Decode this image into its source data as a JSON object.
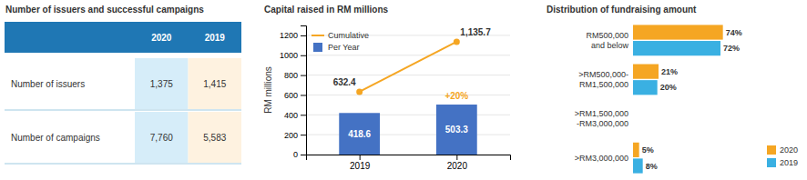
{
  "chart_data": [
    {
      "type": "table",
      "title": "Number of issuers and successful campaigns",
      "categories": [
        "Number of issuers",
        "Number of campaigns"
      ],
      "series": [
        {
          "name": "2020",
          "color": "#d6edf9",
          "values": [
            1375,
            7760
          ],
          "value_labels": [
            "1,375",
            "7,760"
          ]
        },
        {
          "name": "2019",
          "color": "#fef2e0",
          "values": [
            1415,
            5583
          ],
          "value_labels": [
            "1,415",
            "5,583"
          ]
        }
      ],
      "data_labels": true
    },
    {
      "type": "bar",
      "title": "Capital raised in RM millions",
      "categories": [
        "2019",
        "2020"
      ],
      "series": [
        {
          "name": "Cumulative",
          "type": "line",
          "color": "#f5a623",
          "marker": "circle",
          "values": [
            632.4,
            1135.7
          ],
          "value_labels": [
            "632.4",
            "1,135.7"
          ]
        },
        {
          "name": "Per Year",
          "type": "bar",
          "color": "#4472c4",
          "values": [
            418.6,
            503.3
          ]
        }
      ],
      "ylabel": "RM millions",
      "ylim": [
        0,
        1300
      ],
      "yticks": [
        0,
        200,
        400,
        600,
        800,
        1000,
        1200
      ],
      "grid": true,
      "legend": "upper left",
      "data_labels": true,
      "annotations": [
        {
          "text": "+20%",
          "x": "2020",
          "color": "#f5a623"
        }
      ]
    },
    {
      "type": "bar",
      "orientation": "horizontal",
      "title": "Distribution of fundraising amount",
      "categories": [
        "RM500,000\nand below",
        ">RM500,000-\nRM1,500,000",
        ">RM1,500,000\n-RM3,000,000",
        ">RM3,000,000"
      ],
      "series": [
        {
          "name": "2020",
          "color": "#f5a623",
          "values": [
            74,
            21,
            0,
            5
          ],
          "value_labels": [
            "74%",
            "21%",
            null,
            "5%"
          ]
        },
        {
          "name": "2019",
          "color": "#3ab0e2",
          "values": [
            72,
            20,
            0,
            8
          ],
          "value_labels": [
            "72%",
            "20%",
            null,
            "8%"
          ]
        }
      ],
      "xlim": [
        0,
        105
      ],
      "tick_labels": false,
      "legend": "lower right",
      "data_labels": true
    }
  ]
}
